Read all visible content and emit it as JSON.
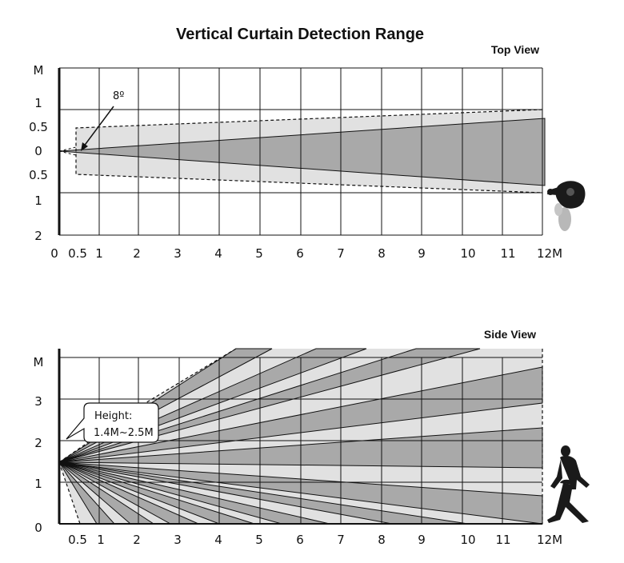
{
  "title": "Vertical Curtain Detection Range",
  "top_view": {
    "label": "Top View",
    "angle_label": "8º",
    "x_ticks": [
      "0",
      "0.5",
      "1",
      "2",
      "3",
      "4",
      "5",
      "6",
      "7",
      "8",
      "9",
      "10",
      "11",
      "12M"
    ],
    "y_ticks": [
      "M",
      "1",
      "0.5",
      "0",
      "0.5",
      "1",
      "2"
    ]
  },
  "side_view": {
    "label": "Side View",
    "callout_line1": "Height:",
    "callout_line2": "1.4M~2.5M",
    "x_ticks": [
      "0.5",
      "1",
      "2",
      "3",
      "4",
      "5",
      "6",
      "7",
      "8",
      "9",
      "10",
      "11",
      "12M"
    ],
    "y_ticks": [
      "M",
      "3",
      "2",
      "1",
      "0"
    ]
  },
  "colors": {
    "dark_zone": "#a9a9a9",
    "light_zone": "#e1e1e1",
    "figure": "#1a1a1a",
    "shadow": "#b8b8b8"
  },
  "icons": [
    "person-top-view-icon",
    "walking-person-icon"
  ]
}
